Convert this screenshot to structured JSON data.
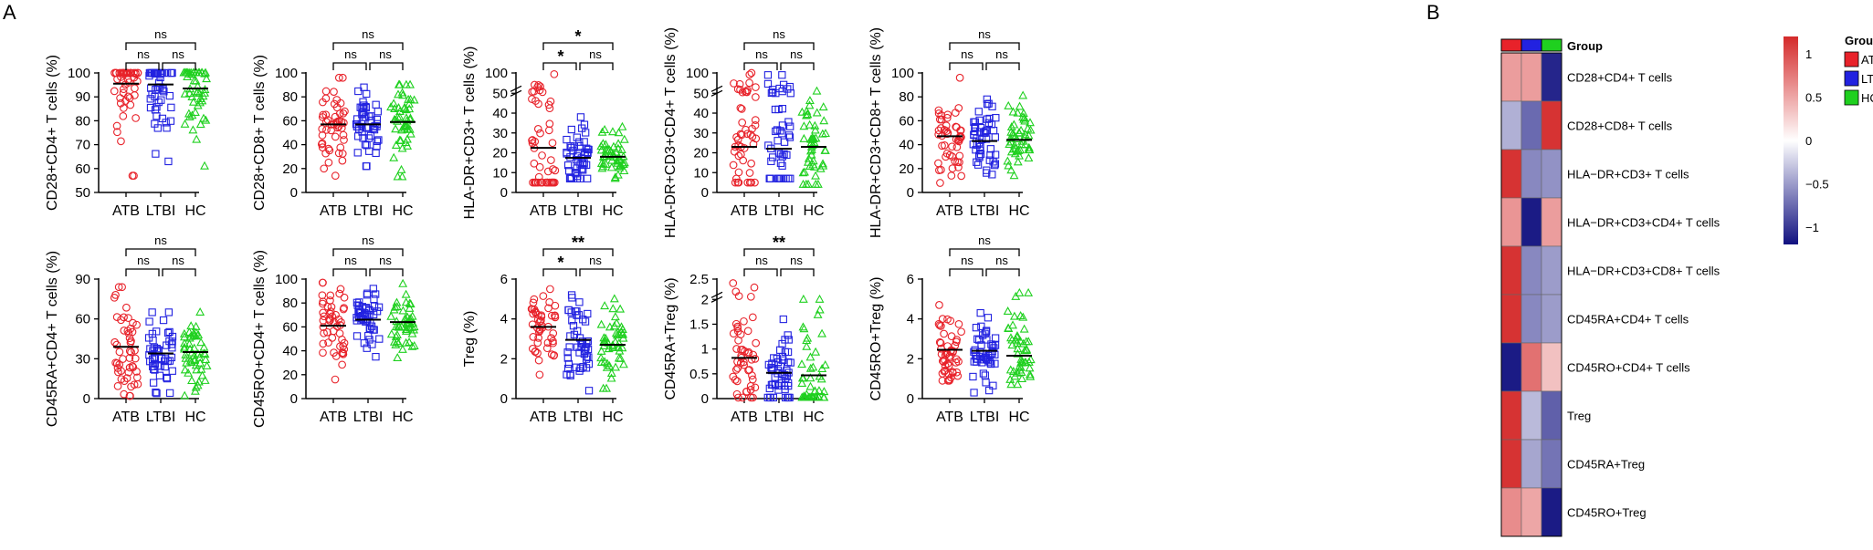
{
  "panel_labels": {
    "a": "A",
    "b": "B"
  },
  "colors": {
    "ATB": "#e8222a",
    "LTBI": "#2222e0",
    "HC": "#1fd01f",
    "heat_high": "#d42a2a",
    "heat_mid": "#ffffff",
    "heat_low": "#111180"
  },
  "chart_data": [
    {
      "type": "scatter",
      "ylabel": "CD28+CD4+ T cells (%)",
      "categories": [
        "ATB",
        "LTBI",
        "HC"
      ],
      "ylim": [
        50,
        100
      ],
      "yticks": [
        50,
        60,
        70,
        80,
        90,
        100
      ],
      "means": [
        95.5,
        95.2,
        93.5
      ],
      "sig": {
        "bottom": [
          "ns",
          "ns"
        ],
        "top": "ns"
      },
      "spreads": [
        [
          57,
          100
        ],
        [
          63,
          100
        ],
        [
          61,
          100
        ]
      ],
      "n": 50
    },
    {
      "type": "scatter",
      "ylabel": "CD28+CD8+ T cells (%)",
      "categories": [
        "ATB",
        "LTBI",
        "HC"
      ],
      "ylim": [
        0,
        100
      ],
      "yticks": [
        0,
        20,
        40,
        60,
        80,
        100
      ],
      "means": [
        57,
        57,
        59
      ],
      "sig": {
        "bottom": [
          "ns",
          "ns"
        ],
        "top": "ns"
      },
      "spreads": [
        [
          14,
          96
        ],
        [
          22,
          88
        ],
        [
          13,
          90
        ]
      ],
      "n": 50
    },
    {
      "type": "scatter",
      "ylabel": "HLA-DR+CD3+ T cells (%)",
      "categories": [
        "ATB",
        "LTBI",
        "HC"
      ],
      "ylim": [
        0,
        100
      ],
      "broken_axis": true,
      "yticks": [
        0,
        10,
        20,
        30,
        40,
        50,
        100
      ],
      "means": [
        22.5,
        17.5,
        18
      ],
      "sig": {
        "bottom": [
          "*",
          "ns"
        ],
        "top": "*"
      },
      "spreads": [
        [
          5,
          97
        ],
        [
          7,
          38
        ],
        [
          7,
          33
        ]
      ],
      "n": 50
    },
    {
      "type": "scatter",
      "ylabel": "HLA-DR+CD3+CD4+ T cells (%)",
      "categories": [
        "ATB",
        "LTBI",
        "HC"
      ],
      "ylim": [
        0,
        100
      ],
      "broken_axis": true,
      "yticks": [
        0,
        10,
        20,
        30,
        40,
        50,
        100
      ],
      "means": [
        23,
        22,
        23
      ],
      "sig": {
        "bottom": [
          "ns",
          "ns"
        ],
        "top": "ns"
      },
      "spreads": [
        [
          5,
          100
        ],
        [
          7,
          95
        ],
        [
          4,
          55
        ]
      ],
      "n": 50
    },
    {
      "type": "scatter",
      "ylabel": "HLA-DR+CD3+CD8+ T cells (%)",
      "categories": [
        "ATB",
        "LTBI",
        "HC"
      ],
      "ylim": [
        0,
        100
      ],
      "yticks": [
        0,
        20,
        40,
        60,
        80,
        100
      ],
      "means": [
        47,
        43,
        44
      ],
      "sig": {
        "bottom": [
          "ns",
          "ns"
        ],
        "top": "ns"
      },
      "spreads": [
        [
          8,
          96
        ],
        [
          15,
          78
        ],
        [
          14,
          81
        ]
      ],
      "n": 50
    },
    {
      "type": "scatter",
      "ylabel": "CD45RA+CD4+ T cells (%)",
      "categories": [
        "ATB",
        "LTBI",
        "HC"
      ],
      "ylim": [
        0,
        90
      ],
      "yticks": [
        0,
        30,
        60,
        90
      ],
      "means": [
        39,
        34,
        35
      ],
      "sig": {
        "bottom": [
          "ns",
          "ns"
        ],
        "top": "ns"
      },
      "spreads": [
        [
          2,
          84
        ],
        [
          4,
          65
        ],
        [
          2,
          65
        ]
      ],
      "n": 50
    },
    {
      "type": "scatter",
      "ylabel": "CD45RO+CD4+ T cells (%)",
      "categories": [
        "ATB",
        "LTBI",
        "HC"
      ],
      "ylim": [
        0,
        100
      ],
      "yticks": [
        0,
        20,
        40,
        60,
        80,
        100
      ],
      "means": [
        61,
        66,
        64
      ],
      "sig": {
        "bottom": [
          "ns",
          "ns"
        ],
        "top": "ns"
      },
      "spreads": [
        [
          16,
          97
        ],
        [
          35,
          92
        ],
        [
          34,
          96
        ]
      ],
      "n": 50
    },
    {
      "type": "scatter",
      "ylabel": "Treg (%)",
      "categories": [
        "ATB",
        "LTBI",
        "HC"
      ],
      "ylim": [
        0,
        6
      ],
      "yticks": [
        0,
        2,
        4,
        6
      ],
      "means": [
        3.6,
        2.95,
        2.7
      ],
      "sig": {
        "bottom": [
          "*",
          "ns"
        ],
        "top": "**"
      },
      "spreads": [
        [
          1.2,
          5.5
        ],
        [
          0.4,
          5.2
        ],
        [
          0.5,
          5.0
        ]
      ],
      "n": 50
    },
    {
      "type": "scatter",
      "ylabel": "CD45RA+Treg (%)",
      "categories": [
        "ATB",
        "LTBI",
        "HC"
      ],
      "ylim": [
        0,
        2.5
      ],
      "broken_axis": true,
      "yticks": [
        0.0,
        0.5,
        1.0,
        1.5,
        2.0,
        2.5
      ],
      "means": [
        0.82,
        0.52,
        0.47
      ],
      "sig": {
        "bottom": [
          "ns",
          "ns"
        ],
        "top": "**"
      },
      "spreads": [
        [
          0.02,
          2.4
        ],
        [
          0.02,
          1.6
        ],
        [
          0.02,
          2.0
        ]
      ],
      "n": 50
    },
    {
      "type": "scatter",
      "ylabel": "CD45RO+Treg (%)",
      "categories": [
        "ATB",
        "LTBI",
        "HC"
      ],
      "ylim": [
        0,
        6
      ],
      "yticks": [
        0,
        2,
        4,
        6
      ],
      "means": [
        2.45,
        2.4,
        2.15
      ],
      "sig": {
        "bottom": [
          "ns",
          "ns"
        ],
        "top": "ns"
      },
      "spreads": [
        [
          0.9,
          4.7
        ],
        [
          0.3,
          4.3
        ],
        [
          0.7,
          5.3
        ]
      ],
      "n": 50
    },
    {
      "type": "heatmap",
      "column_groups": [
        "ATB",
        "LTBI",
        "HC"
      ],
      "group_label": "Group",
      "rows": [
        "CD28+CD4+ T cells",
        "CD28+CD8+ T cells",
        "HLA−DR+CD3+ T cells",
        "HLA−DR+CD3+CD4+ T cells",
        "HLA−DR+CD3+CD8+ T cells",
        "CD45RA+CD4+ T cells",
        "CD45RO+CD4+ T cells",
        "Treg",
        "CD45RA+Treg",
        "CD45RO+Treg"
      ],
      "values": [
        [
          0.55,
          0.55,
          -1.1
        ],
        [
          -0.4,
          -0.75,
          1.15
        ],
        [
          1.15,
          -0.6,
          -0.55
        ],
        [
          0.6,
          -1.15,
          0.55
        ],
        [
          1.15,
          -0.6,
          -0.5
        ],
        [
          1.15,
          -0.6,
          -0.5
        ],
        [
          -1.15,
          0.8,
          0.35
        ],
        [
          1.15,
          -0.35,
          -0.8
        ],
        [
          1.15,
          -0.45,
          -0.7
        ],
        [
          0.65,
          0.5,
          -1.15
        ]
      ],
      "scale_ticks": [
        1,
        0.5,
        0,
        -0.5,
        -1
      ],
      "scale_tick_labels": [
        "1",
        "0.5",
        "0",
        "−0.5",
        "−1"
      ],
      "legend_title": "Group"
    }
  ]
}
